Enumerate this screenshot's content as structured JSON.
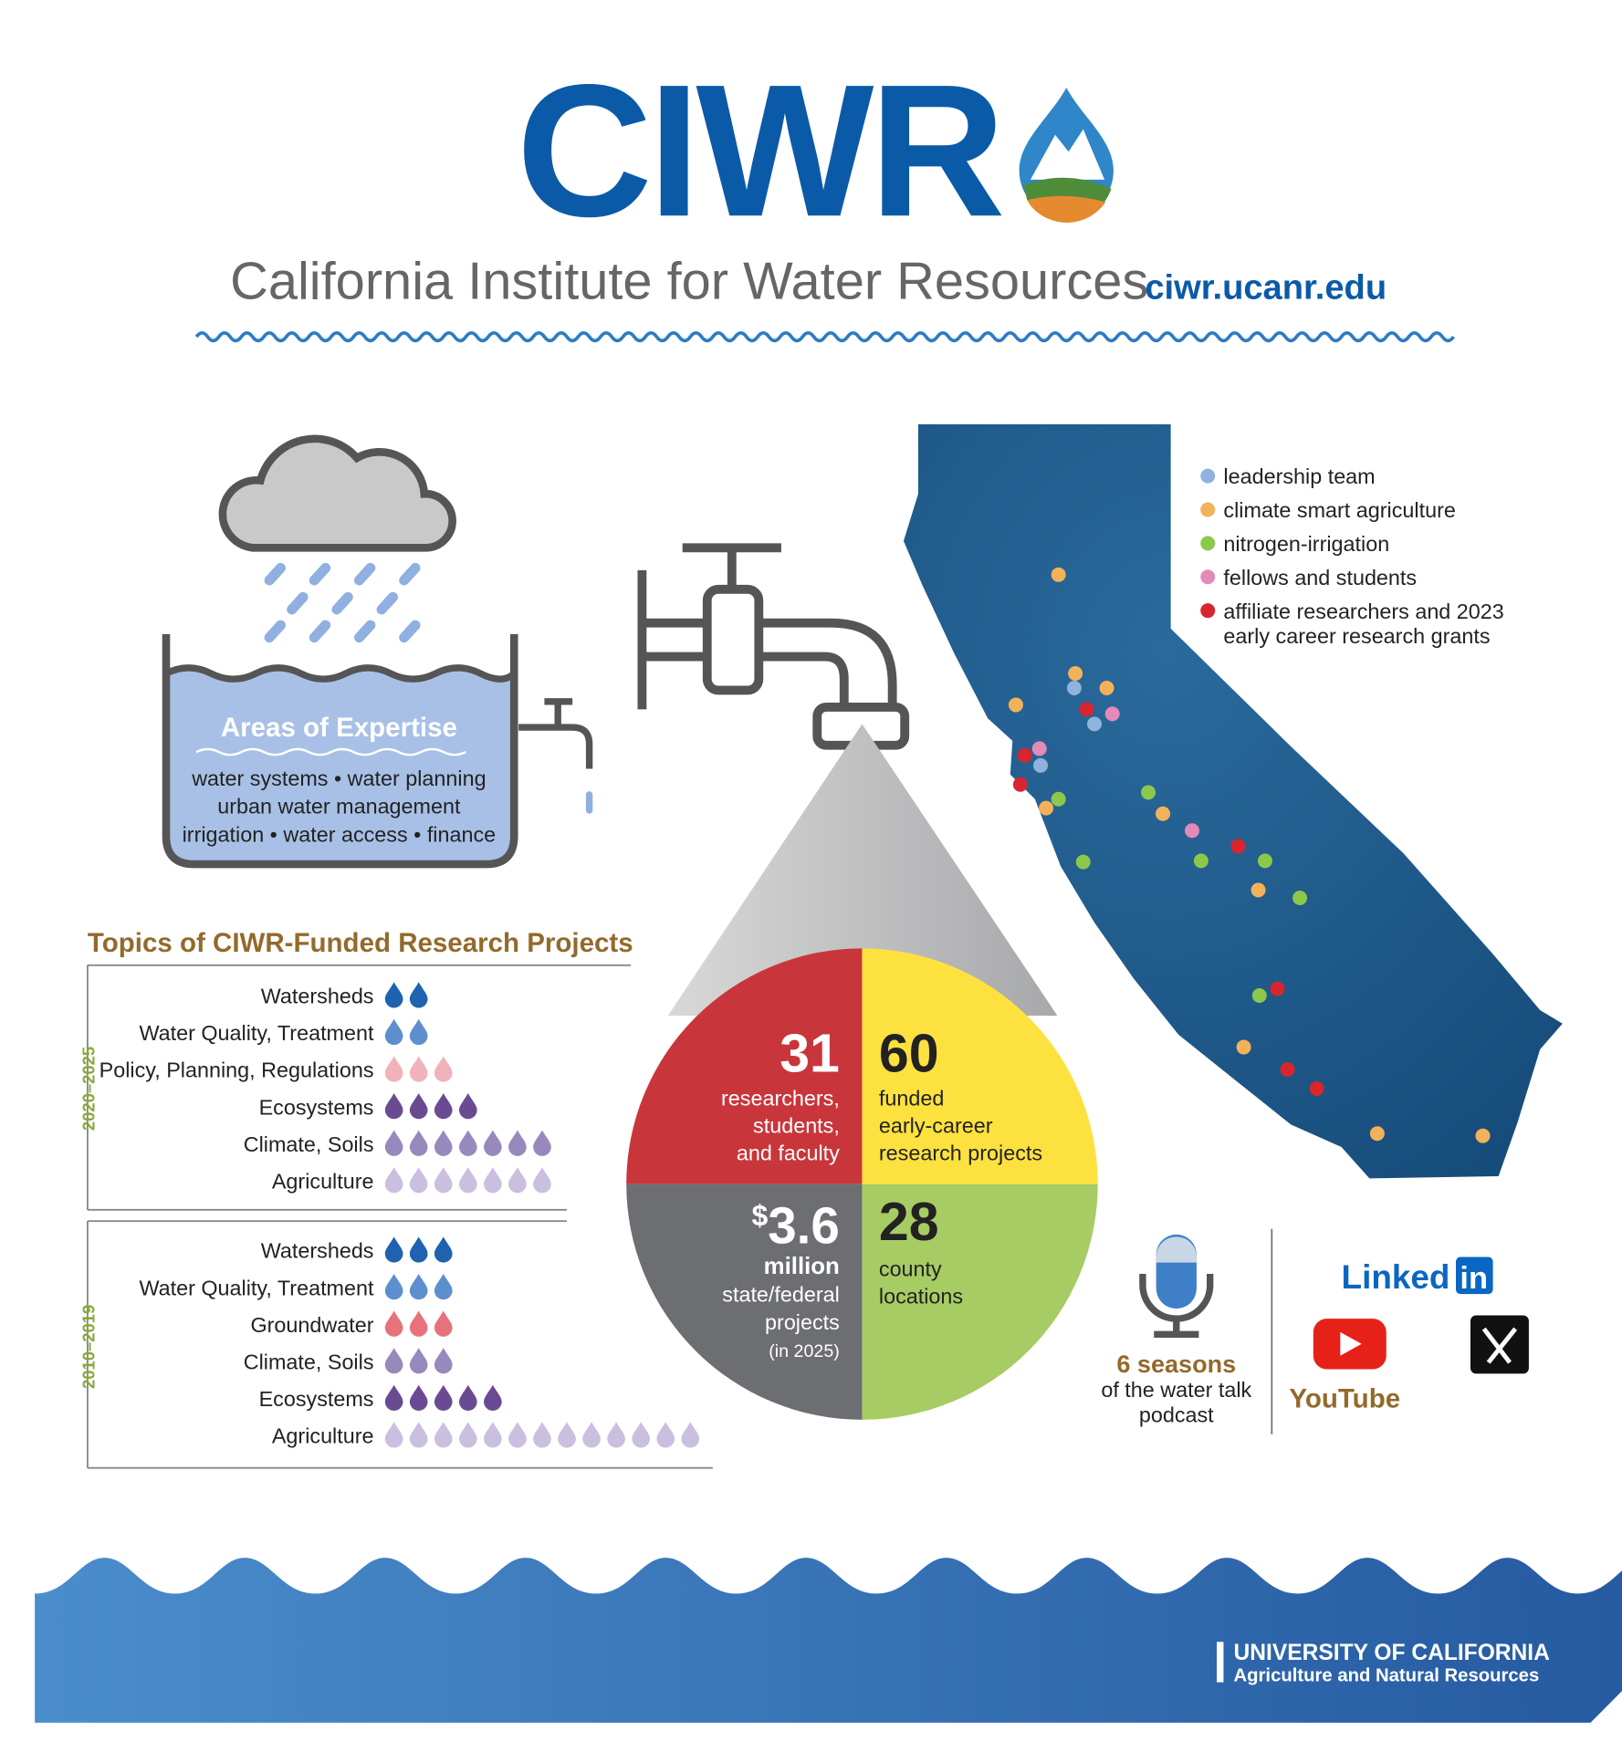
{
  "header": {
    "title": "CIWR",
    "subtitle": "California Institute for Water Resources",
    "url": "ciwr.ucanr.edu"
  },
  "expertise": {
    "title": "Areas of Expertise",
    "lines": [
      "water systems • water planning",
      "urban water management",
      "irrigation • water access • finance"
    ]
  },
  "topics": {
    "title": "Topics of CIWR-Funded Research Projects",
    "periods": [
      {
        "label": "2020–2025",
        "rows": [
          {
            "label": "Watersheds",
            "count": 2,
            "color": "#1f62b0"
          },
          {
            "label": "Water Quality, Treatment",
            "count": 2,
            "color": "#5d8fcf"
          },
          {
            "label": "Policy, Planning, Regulations",
            "count": 3,
            "color": "#f0b3bc"
          },
          {
            "label": "Ecosystems",
            "count": 4,
            "color": "#6a4b93"
          },
          {
            "label": "Climate, Soils",
            "count": 7,
            "color": "#9889bd"
          },
          {
            "label": "Agriculture",
            "count": 7,
            "color": "#cbbfe0"
          }
        ]
      },
      {
        "label": "2010–2019",
        "rows": [
          {
            "label": "Watersheds",
            "count": 3,
            "color": "#1f62b0"
          },
          {
            "label": "Water Quality, Treatment",
            "count": 3,
            "color": "#5d8fcf"
          },
          {
            "label": "Groundwater",
            "count": 3,
            "color": "#e8727b"
          },
          {
            "label": "Climate, Soils",
            "count": 3,
            "color": "#9889bd"
          },
          {
            "label": "Ecosystems",
            "count": 5,
            "color": "#6a4b93"
          },
          {
            "label": "Agriculture",
            "count": 13,
            "color": "#cbbfe0"
          }
        ]
      }
    ]
  },
  "stats": [
    {
      "value": 31,
      "lines": [
        "researchers,",
        "students,",
        "and faculty"
      ]
    },
    {
      "value": 60,
      "lines": [
        "funded",
        "early-career",
        "research projects"
      ]
    },
    {
      "prefix": "$",
      "value": 3.6,
      "unit": "million",
      "lines": [
        "state/federal",
        "projects"
      ],
      "note": "(in 2025)"
    },
    {
      "value": 28,
      "lines": [
        "county",
        "locations"
      ]
    }
  ],
  "map": {
    "legend": [
      {
        "label": "leadership team",
        "color": "#8fb3dd"
      },
      {
        "label": "climate smart agriculture",
        "color": "#f2b25a"
      },
      {
        "label": "nitrogen-irrigation",
        "color": "#8cc84b"
      },
      {
        "label": "fellows and students",
        "color": "#e48ab8"
      },
      {
        "label": "affiliate researchers and 2023",
        "label2": "early career research grants",
        "color": "#d7262e"
      }
    ]
  },
  "podcast": {
    "title": "6 seasons",
    "lines": [
      "of the water talk",
      "podcast"
    ]
  },
  "social": {
    "linkedin": "Linked",
    "linkedin_box": "in",
    "youtube": "YouTube"
  },
  "footer": {
    "line1": "UNIVERSITY OF CALIFORNIA",
    "line2": "Agriculture and Natural Resources"
  }
}
